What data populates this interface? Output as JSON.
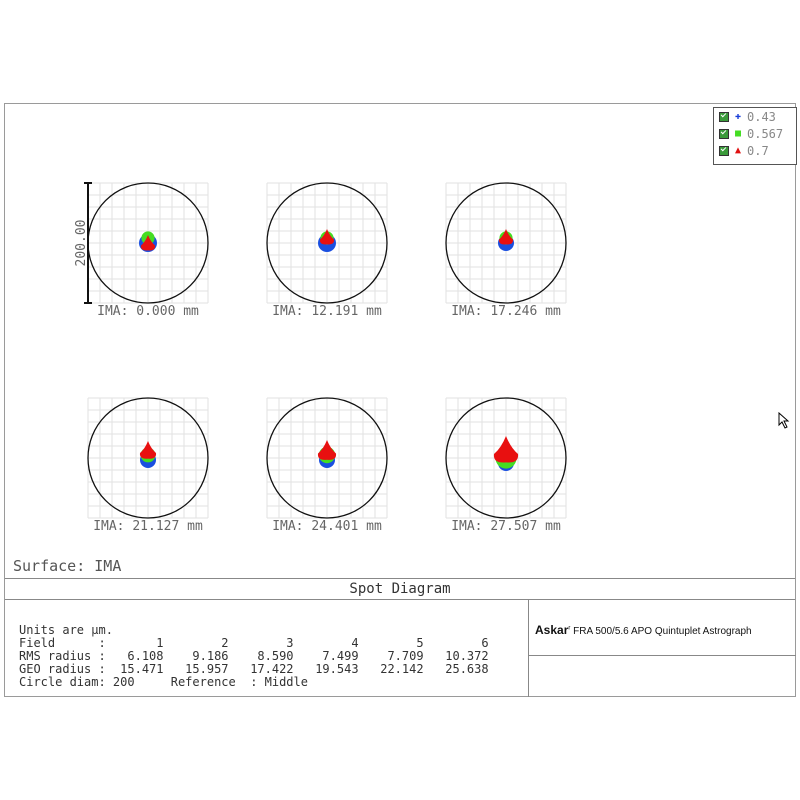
{
  "legend": [
    {
      "label": "0.43",
      "marker": "plus",
      "color": "#1a3fd8"
    },
    {
      "label": "0.567",
      "marker": "square",
      "color": "#44dd22"
    },
    {
      "label": "0.7",
      "marker": "triangle",
      "color": "#e01010"
    }
  ],
  "scale_label": "200.00",
  "fields": [
    {
      "label": "IMA: 0.000 mm"
    },
    {
      "label": "IMA: 12.191 mm"
    },
    {
      "label": "IMA: 17.246 mm"
    },
    {
      "label": "IMA: 21.127 mm"
    },
    {
      "label": "IMA: 24.401 mm"
    },
    {
      "label": "IMA: 27.507 mm"
    }
  ],
  "surface": "Surface: IMA",
  "title": "Spot Diagram",
  "info": {
    "units": "Units are µm.",
    "field_row": "Field      :       1        2        3        4        5        6",
    "rms_row": "RMS radius :   6.108    9.186    8.590    7.499    7.709   10.372",
    "geo_row": "GEO radius :  15.471   15.957   17.422   19.543   22.142   25.638",
    "circle_row": "Circle diam: 200     Reference  : Middle"
  },
  "brand": {
    "logo": "Askar",
    "text": "FRA 500/5.6 APO Quintuplet Astrograph"
  }
}
